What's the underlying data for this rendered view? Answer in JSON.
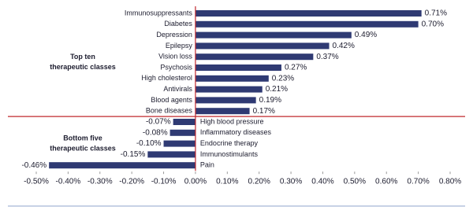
{
  "chart_data": {
    "type": "hbar",
    "categories": [
      "Immunosuppressants",
      "Diabetes",
      "Depression",
      "Epilepsy",
      "Vision loss",
      "Psychosis",
      "High cholesterol",
      "Antivirals",
      "Blood agents",
      "Bone diseases",
      "High blood pressure",
      "Inflammatory diseases",
      "Endocrine therapy",
      "Immunostimulants",
      "Pain"
    ],
    "values": [
      0.71,
      0.7,
      0.49,
      0.42,
      0.37,
      0.27,
      0.23,
      0.21,
      0.19,
      0.17,
      -0.07,
      -0.08,
      -0.1,
      -0.15,
      -0.46
    ],
    "value_labels": [
      "0.71%",
      "0.70%",
      "0.49%",
      "0.42%",
      "0.37%",
      "0.27%",
      "0.23%",
      "0.21%",
      "0.19%",
      "0.17%",
      "-0.07%",
      "-0.08%",
      "-0.10%",
      "-0.15%",
      "-0.46%"
    ],
    "group_labels": [
      [
        "Top ten",
        "therapeutic classes"
      ],
      [
        "Bottom five",
        "therapeutic classes"
      ]
    ],
    "color": "#2f3a73",
    "xlim": [
      -0.5,
      0.8
    ],
    "xticks": [
      {
        "value": -0.5,
        "label": "-0.50%"
      },
      {
        "value": -0.4,
        "label": "-0.40%"
      },
      {
        "value": -0.3,
        "label": "-0.30%"
      },
      {
        "value": -0.2,
        "label": "-0.20%"
      },
      {
        "value": -0.1,
        "label": "-0.10%"
      },
      {
        "value": 0,
        "label": "0.00%"
      },
      {
        "value": 0.1,
        "label": "0.10%"
      },
      {
        "value": 0.2,
        "label": "0.20%"
      },
      {
        "value": 0.3,
        "label": "0.30%"
      },
      {
        "value": 0.4,
        "label": "0.40%"
      },
      {
        "value": 0.5,
        "label": "0.50%"
      },
      {
        "value": 0.6,
        "label": "0.60%"
      },
      {
        "value": 0.7,
        "label": "0.70%"
      },
      {
        "value": 0.8,
        "label": "0.80%"
      }
    ]
  }
}
